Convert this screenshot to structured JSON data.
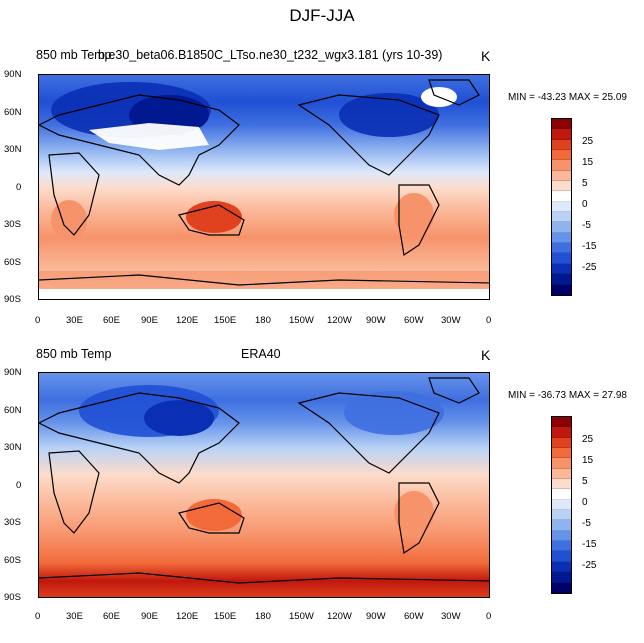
{
  "title": "DJF-JJA",
  "units": "K",
  "lat_ticks": [
    "90N",
    "60N",
    "30N",
    "0",
    "30S",
    "60S",
    "90S"
  ],
  "lon_ticks": [
    "0",
    "30E",
    "60E",
    "90E",
    "120E",
    "150E",
    "180",
    "150W",
    "120W",
    "90W",
    "60W",
    "30W",
    "0"
  ],
  "colorbar": {
    "labels": [
      "25",
      "15",
      "5",
      "0",
      "-5",
      "-15",
      "-25"
    ],
    "colors": [
      "#8b0000",
      "#c0180c",
      "#e0421f",
      "#f26a3a",
      "#f7936a",
      "#fbb899",
      "#fddccb",
      "#ffffff",
      "#dde9fb",
      "#b8d2f6",
      "#8fb3ef",
      "#6693ea",
      "#3f6fe0",
      "#2050d4",
      "#0a2fb4",
      "#001890",
      "#00006a"
    ]
  },
  "panels": [
    {
      "left_label": "850 mb Temp",
      "center_label": "b.e30_beta06.B1850C_LTso.ne30_t232_wgx3.181 (yrs 10-39)",
      "minmax": "MIN = -43.23 MAX =  25.09"
    },
    {
      "left_label": "850 mb Temp",
      "center_label": "ERA40",
      "minmax": "MIN = -36.73 MAX =  27.98"
    }
  ]
}
